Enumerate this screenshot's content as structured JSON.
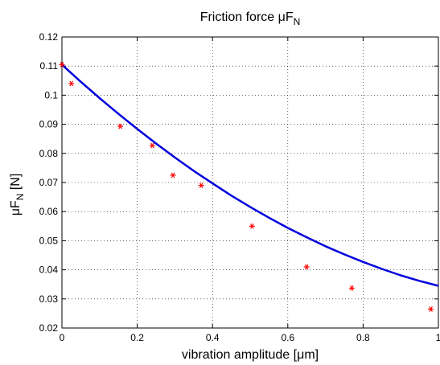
{
  "chart_data": {
    "type": "scatter",
    "title": "Friction force μF",
    "title_subscript": "N",
    "xlabel": "vibration amplitude [μm]",
    "ylabel": "μF",
    "ylabel_subscript": "N",
    "ylabel_unit": " [N]",
    "xlim": [
      0,
      1
    ],
    "ylim": [
      0.02,
      0.12
    ],
    "x_ticks": [
      "0",
      "0.2",
      "0.4",
      "0.6",
      "0.8",
      "1"
    ],
    "y_ticks": [
      "0.02",
      "0.03",
      "0.04",
      "0.05",
      "0.06",
      "0.07",
      "0.08",
      "0.09",
      "0.1",
      "0.11",
      "0.12"
    ],
    "grid": true,
    "series": [
      {
        "kind": "markers",
        "marker": "asterisk",
        "color": "#ff0000",
        "x": [
          0.0,
          0.025,
          0.155,
          0.24,
          0.295,
          0.37,
          0.505,
          0.65,
          0.77,
          0.98
        ],
        "y": [
          0.1105,
          0.104,
          0.0893,
          0.0827,
          0.0725,
          0.069,
          0.055,
          0.041,
          0.0337,
          0.0265
        ]
      },
      {
        "kind": "line",
        "color": "#0000dd",
        "x": [
          0.0,
          0.05,
          0.1,
          0.15,
          0.2,
          0.25,
          0.3,
          0.35,
          0.4,
          0.45,
          0.5,
          0.55,
          0.6,
          0.65,
          0.7,
          0.75,
          0.8,
          0.85,
          0.9,
          0.95,
          1.0
        ],
        "y": [
          0.1105,
          0.1046,
          0.099,
          0.0936,
          0.0884,
          0.0834,
          0.0786,
          0.074,
          0.0697,
          0.0655,
          0.0616,
          0.0579,
          0.0544,
          0.0512,
          0.0481,
          0.0453,
          0.0427,
          0.0403,
          0.0381,
          0.0362,
          0.0345
        ]
      }
    ]
  }
}
